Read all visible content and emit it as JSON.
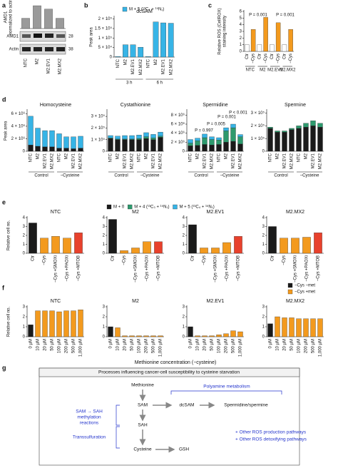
{
  "panel_labels": [
    "a",
    "b",
    "c",
    "d",
    "e",
    "f",
    "g"
  ],
  "blot": {
    "bands": [
      "AMD1",
      "Actin"
    ],
    "markers": [
      "28",
      "38"
    ]
  },
  "chart_data": [
    {
      "type": "bar",
      "ylabel": [
        "AMD1",
        "normalized to actin"
      ],
      "categories": [
        "NTC",
        "M2",
        "M2.EV1",
        "M2.MX2"
      ],
      "values": [
        0.45,
        1.0,
        0.85,
        0.45
      ],
      "color": "#9a9a9a",
      "ylim": [
        0,
        1
      ]
    },
    {
      "type": "bar",
      "title": "dcSAM",
      "ylabel": "Peak area",
      "categories": [
        "NTC",
        "M2",
        "M2.EV1",
        "M2.MX2",
        "NTC",
        "M2",
        "M2.EV1",
        "M2.MX2"
      ],
      "group_labels": [
        "3 h",
        "6 h"
      ],
      "series": [
        {
          "name": "M + 5 (¹³C₄ + ¹⁵N₁)",
          "color": "#37b4e6",
          "values": [
            3000,
            65000,
            65000,
            52000,
            3000,
            185000,
            180000,
            178000
          ]
        }
      ],
      "legend": true,
      "ylim": [
        0,
        210000
      ],
      "yticks": [
        0,
        {
          "value": 50000,
          "label": "5 × 10⁴"
        },
        {
          "value": 100000,
          "label": "1 × 10⁵"
        },
        {
          "value": 150000,
          "label": "1.5 × 10⁵"
        },
        {
          "value": 200000,
          "label": "2 × 10⁵"
        }
      ]
    },
    {
      "type": "bar",
      "ylabel": [
        "Relative ROS (CellROX)",
        "staining intensity"
      ],
      "categories": [
        "Ctr",
        "−Cys",
        "Ctr",
        "−Cys",
        "Ctr",
        "−Cys",
        "Ctr",
        "−Cys"
      ],
      "group_labels": [
        "NTC",
        "M2",
        "M2.EV1",
        "M2.MX2"
      ],
      "values": [
        1.0,
        3.3,
        1.0,
        5.1,
        1.0,
        4.3,
        1.0,
        3.3
      ],
      "colors": [
        "#ffffff",
        "#f39a1e",
        "#ffffff",
        "#f39a1e",
        "#ffffff",
        "#f39a1e",
        "#ffffff",
        "#f39a1e"
      ],
      "annotations": [
        "P = 0.001",
        "P = 0.001"
      ],
      "ylim": [
        0,
        6
      ],
      "yticks": [
        0,
        1,
        2,
        3,
        4,
        5,
        6
      ]
    },
    {
      "type": "bar",
      "title": "Homocysteine",
      "ylabel": "Peak area",
      "stacked": true,
      "legend": true,
      "categories": [
        "NTC",
        "M2",
        "M2.EV1",
        "M2.MX2",
        "NTC",
        "M2",
        "M2.EV1",
        "M2.MX2"
      ],
      "group_labels": [
        "Control",
        "−Cysteine"
      ],
      "series": [
        {
          "name": "M + 0",
          "color": "#1a1a1a",
          "values": [
            1000000,
            800000,
            700000,
            700000,
            500000,
            500000,
            400000,
            500000
          ]
        },
        {
          "name": "M + 4 (¹³C₃ + ¹⁵N₁)",
          "color": "#2e9a6e",
          "values": [
            0,
            0,
            0,
            0,
            0,
            0,
            0,
            0
          ]
        },
        {
          "name": "M + 5 (¹³C₄ + ¹⁵N₁)",
          "color": "#37b4e6",
          "values": [
            4600000,
            2900000,
            2600000,
            2600000,
            2300000,
            1800000,
            1900000,
            1900000
          ]
        }
      ],
      "ylim": [
        0,
        6500000
      ],
      "yticks": [
        0,
        {
          "value": 2000000,
          "label": "2 × 10⁶"
        },
        {
          "value": 4000000,
          "label": "4 × 10⁶"
        },
        {
          "value": 6000000,
          "label": "6 × 10⁶"
        }
      ]
    },
    {
      "type": "bar",
      "title": "Cystathionine",
      "stacked": true,
      "categories": [
        "NTC",
        "M2",
        "M2.EV1",
        "M2.MX2",
        "NTC",
        "M2",
        "M2.EV1",
        "M2.MX2"
      ],
      "group_labels": [
        "Control",
        "−Cysteine"
      ],
      "series": [
        {
          "color": "#1a1a1a",
          "values": [
            110000,
            100000,
            100000,
            100000,
            100000,
            110000,
            100000,
            120000
          ]
        },
        {
          "color": "#2e9a6e",
          "values": [
            5000,
            5000,
            5000,
            5000,
            10000,
            15000,
            15000,
            10000
          ]
        },
        {
          "color": "#37b4e6",
          "values": [
            20000,
            25000,
            30000,
            30000,
            30000,
            35000,
            30000,
            35000
          ]
        }
      ],
      "ylim": [
        0,
        350000
      ],
      "yticks": [
        0,
        {
          "value": 100000,
          "label": "1 × 10⁵"
        },
        {
          "value": 200000,
          "label": "2 × 10⁵"
        },
        {
          "value": 300000,
          "label": "3 × 10⁵"
        }
      ]
    },
    {
      "type": "bar",
      "title": "Spermidine",
      "stacked": true,
      "categories": [
        "NTC",
        "M2",
        "M2.EV1",
        "M2.MX2",
        "NTC",
        "M2",
        "M2.EV1",
        "M2.MX2"
      ],
      "group_labels": [
        "Control",
        "−Cysteine"
      ],
      "series": [
        {
          "color": "#1a1a1a",
          "values": [
            1200000,
            1300000,
            1500000,
            1400000,
            1500000,
            2000000,
            2200000,
            1600000
          ]
        },
        {
          "color": "#2e9a6e",
          "values": [
            600000,
            1000000,
            1500000,
            1200000,
            1000000,
            2500000,
            3000000,
            1600000
          ]
        },
        {
          "color": "#37b4e6",
          "values": [
            800000,
            600000,
            800000,
            600000,
            500000,
            700000,
            800000,
            500000
          ]
        }
      ],
      "annotations": [
        "P = 0.997",
        "P = 0.005",
        "P = 0.001",
        "P < 0.001"
      ],
      "ylim": [
        0,
        9000000
      ],
      "yticks": [
        0,
        {
          "value": 2000000,
          "label": "2 × 10⁶"
        },
        {
          "value": 4000000,
          "label": "4 × 10⁶"
        },
        {
          "value": 6000000,
          "label": "6 × 10⁶"
        },
        {
          "value": 8000000,
          "label": "8 × 10⁶"
        }
      ]
    },
    {
      "type": "bar",
      "title": "Spermine",
      "stacked": true,
      "categories": [
        "NTC",
        "M2",
        "M2.EV1",
        "M2.MX2",
        "NTC",
        "M2",
        "M2.EV1",
        "M2.MX2"
      ],
      "group_labels": [
        "Control",
        "−Cysteine"
      ],
      "series": [
        {
          "color": "#1a1a1a",
          "values": [
            180000,
            150000,
            150000,
            170000,
            180000,
            190000,
            200000,
            190000
          ]
        },
        {
          "color": "#2e9a6e",
          "values": [
            10000,
            10000,
            10000,
            10000,
            20000,
            30000,
            40000,
            30000
          ]
        },
        {
          "color": "#37b4e6",
          "values": [
            0,
            0,
            0,
            0,
            0,
            0,
            0,
            0
          ]
        }
      ],
      "ylim": [
        0,
        320000
      ],
      "yticks": [
        0,
        {
          "value": 100000,
          "label": "1 × 10⁵"
        },
        {
          "value": 200000,
          "label": "2 × 10⁵"
        },
        {
          "value": 300000,
          "label": "3 × 10⁵"
        }
      ]
    },
    {
      "type": "bar",
      "title": "NTC",
      "ylabel": "Relative cell no.",
      "categories": [
        "Ctr",
        "−Cys",
        "−Cys +SMOXi",
        "−Cys +PAOXi",
        "−Cys +MTOB"
      ],
      "values": [
        3.4,
        1.7,
        1.9,
        1.7,
        2.3
      ],
      "colors": [
        "#1a1a1a",
        "#f39a1e",
        "#f39a1e",
        "#f39a1e",
        "#e8412c"
      ],
      "ylim": [
        0,
        4
      ],
      "yticks": [
        0,
        1,
        2,
        3,
        4
      ]
    },
    {
      "type": "bar",
      "title": "M2",
      "categories": [
        "Ctr",
        "−Cys",
        "−Cys +SMOXi",
        "−Cys +PAOXi",
        "−Cys +MTOB"
      ],
      "values": [
        3.8,
        0.3,
        0.6,
        1.3,
        1.3
      ],
      "colors": [
        "#1a1a1a",
        "#f39a1e",
        "#f39a1e",
        "#f39a1e",
        "#e8412c"
      ],
      "ylim": [
        0,
        4
      ],
      "yticks": [
        0,
        1,
        2,
        3,
        4
      ]
    },
    {
      "type": "bar",
      "title": "M2.EV1",
      "categories": [
        "Ctr",
        "−Cys",
        "−Cys +SMOXi",
        "−Cys +PAOXi",
        "−Cys +MTOB"
      ],
      "values": [
        3.2,
        0.6,
        0.6,
        1.2,
        1.9
      ],
      "colors": [
        "#1a1a1a",
        "#f39a1e",
        "#f39a1e",
        "#f39a1e",
        "#e8412c"
      ],
      "ylim": [
        0,
        4
      ],
      "yticks": [
        0,
        1,
        2,
        3,
        4
      ]
    },
    {
      "type": "bar",
      "title": "M2.MX2",
      "categories": [
        "Ctr",
        "−Cys",
        "−Cys +SMOXi",
        "−Cys +PAOXi",
        "−Cys +MTOB"
      ],
      "values": [
        3.0,
        1.7,
        1.7,
        1.8,
        2.3
      ],
      "colors": [
        "#1a1a1a",
        "#f39a1e",
        "#f39a1e",
        "#f39a1e",
        "#e8412c"
      ],
      "ylim": [
        0,
        4
      ],
      "yticks": [
        0,
        1,
        2,
        3,
        4
      ]
    },
    {
      "type": "bar",
      "title": "NTC",
      "ylabel": "Relative cell no.",
      "xlabel": "Methionine concentration (−cysteine)",
      "stacked": true,
      "legend": true,
      "categories": [
        "0 µM",
        "10 µM",
        "20 µM",
        "50 µM",
        "100 µM",
        "200 µM",
        "500 µM",
        "1,000 µM"
      ],
      "series": [
        {
          "name": "−Cys −met",
          "color": "#1a1a1a",
          "values": [
            1.2,
            null,
            null,
            null,
            null,
            null,
            null,
            null
          ]
        },
        {
          "name": "−Cys +met",
          "color": "#f39a1e",
          "values": [
            null,
            2.6,
            2.6,
            2.6,
            2.5,
            2.6,
            2.6,
            2.7
          ]
        }
      ],
      "ylim": [
        0,
        3
      ],
      "yticks": [
        0,
        1,
        2,
        3
      ]
    },
    {
      "type": "bar",
      "title": "M2",
      "stacked": true,
      "categories": [
        "0 µM",
        "10 µM",
        "20 µM",
        "50 µM",
        "100 µM",
        "200 µM",
        "500 µM",
        "1,000 µM"
      ],
      "series": [
        {
          "color": "#1a1a1a",
          "values": [
            1.0,
            null,
            null,
            null,
            null,
            null,
            null,
            null
          ]
        },
        {
          "color": "#f39a1e",
          "values": [
            null,
            0.9,
            0.1,
            0.1,
            0.1,
            0.1,
            0.1,
            0.1
          ]
        }
      ],
      "ylim": [
        0,
        3
      ],
      "yticks": [
        0,
        1,
        2,
        3
      ]
    },
    {
      "type": "bar",
      "title": "M2.EV1",
      "stacked": true,
      "categories": [
        "0 µM",
        "10 µM",
        "20 µM",
        "50 µM",
        "100 µM",
        "200 µM",
        "500 µM",
        "1,000 µM"
      ],
      "series": [
        {
          "color": "#1a1a1a",
          "values": [
            1.0,
            null,
            null,
            null,
            null,
            null,
            null,
            null
          ]
        },
        {
          "color": "#f39a1e",
          "values": [
            null,
            0.1,
            0.1,
            0.1,
            0.2,
            0.3,
            0.6,
            0.5
          ]
        }
      ],
      "ylim": [
        0,
        3
      ],
      "yticks": [
        0,
        1,
        2,
        3
      ]
    },
    {
      "type": "bar",
      "title": "M2.MX2",
      "stacked": true,
      "categories": [
        "0 µM",
        "10 µM",
        "20 µM",
        "50 µM",
        "100 µM",
        "200 µM",
        "500 µM",
        "1,000 µM"
      ],
      "series": [
        {
          "color": "#1a1a1a",
          "values": [
            1.3,
            null,
            null,
            null,
            null,
            null,
            null,
            null
          ]
        },
        {
          "color": "#f39a1e",
          "values": [
            null,
            2.0,
            1.9,
            1.9,
            1.8,
            1.8,
            1.8,
            1.8
          ]
        }
      ],
      "ylim": [
        0,
        3
      ],
      "yticks": [
        0,
        1,
        2,
        3
      ]
    }
  ],
  "diagram": {
    "title": "Processes influencing cancer-cell susceptibility to cysteine starvation",
    "nodes": [
      "Methionine",
      "SAM",
      "dcSAM",
      "Spermidine/spermine",
      "SAH",
      "Cysteine",
      "GSH"
    ],
    "polyamine": "Polyamine metabolism",
    "methylation": [
      "SAM → SAH",
      "methylation",
      "reactions"
    ],
    "transsulfuration": "Transsulfuration",
    "other": [
      "+ Other ROS production pathways",
      "+ Other ROS detoxifying pathways"
    ]
  }
}
